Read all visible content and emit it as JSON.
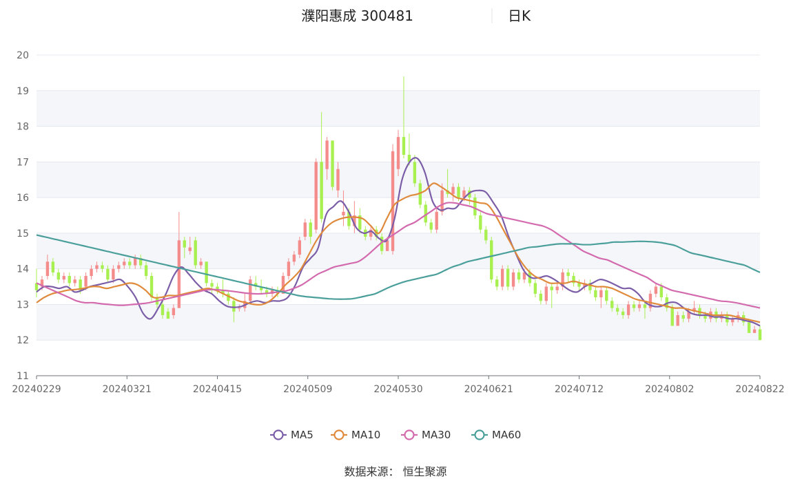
{
  "title": {
    "name": "濮阳惠成 300481",
    "period": "日K"
  },
  "source": "数据来源： 恒生聚源",
  "chart_data": {
    "type": "candlestick",
    "ylim": [
      11,
      20
    ],
    "yticks": [
      11,
      12,
      13,
      14,
      15,
      16,
      17,
      18,
      19,
      20
    ],
    "xtick_labels": [
      "20240229",
      "20240321",
      "20240415",
      "20240509",
      "20240530",
      "20240621",
      "20240712",
      "20240802",
      "20240822"
    ],
    "grid": true,
    "legend_position": "bottom-center",
    "colors": {
      "up": "#f58c8c",
      "down": "#a8ef50",
      "MA5": "#7b5ea7",
      "MA10": "#e08a3c",
      "MA30": "#d36aae",
      "MA60": "#4a9f9a"
    },
    "candles": [
      [
        13.6,
        13.4,
        14.0,
        13.2
      ],
      [
        13.5,
        13.7,
        13.8,
        13.4
      ],
      [
        13.8,
        14.2,
        14.4,
        13.7
      ],
      [
        14.2,
        13.9,
        14.3,
        13.8
      ],
      [
        13.9,
        13.7,
        14.0,
        13.6
      ],
      [
        13.7,
        13.8,
        13.9,
        13.6
      ],
      [
        13.8,
        13.6,
        13.9,
        13.5
      ],
      [
        13.6,
        13.7,
        13.8,
        13.5
      ],
      [
        13.7,
        13.4,
        13.8,
        13.3
      ],
      [
        13.5,
        13.8,
        13.9,
        13.4
      ],
      [
        13.8,
        14.0,
        14.1,
        13.7
      ],
      [
        14.0,
        14.1,
        14.2,
        13.9
      ],
      [
        14.1,
        14.0,
        14.2,
        13.9
      ],
      [
        14.0,
        13.7,
        14.1,
        13.6
      ],
      [
        13.7,
        14.0,
        14.1,
        13.6
      ],
      [
        14.0,
        14.1,
        14.2,
        13.9
      ],
      [
        14.1,
        14.2,
        14.3,
        14.0
      ],
      [
        14.2,
        14.1,
        14.3,
        14.0
      ],
      [
        14.1,
        14.3,
        14.4,
        14.0
      ],
      [
        14.3,
        14.1,
        14.4,
        14.0
      ],
      [
        14.1,
        13.8,
        14.2,
        13.7
      ],
      [
        13.8,
        13.2,
        13.9,
        13.1
      ],
      [
        13.2,
        13.0,
        13.3,
        12.9
      ],
      [
        13.0,
        12.7,
        13.1,
        12.6
      ],
      [
        12.8,
        12.6,
        12.9,
        12.6
      ],
      [
        12.7,
        12.9,
        13.0,
        12.6
      ],
      [
        12.9,
        14.8,
        15.6,
        12.9
      ],
      [
        14.8,
        14.6,
        14.9,
        14.3
      ],
      [
        14.5,
        14.6,
        14.9,
        14.4
      ],
      [
        14.8,
        14.1,
        14.9,
        14.0
      ],
      [
        14.1,
        14.2,
        14.3,
        14.0
      ],
      [
        14.2,
        13.6,
        14.2,
        13.5
      ],
      [
        13.6,
        13.5,
        13.7,
        13.3
      ],
      [
        13.5,
        13.4,
        13.6,
        13.3
      ],
      [
        13.4,
        13.3,
        13.7,
        13.2
      ],
      [
        13.3,
        13.1,
        13.4,
        13.0
      ],
      [
        13.1,
        12.8,
        13.2,
        12.5
      ],
      [
        12.9,
        12.9,
        13.0,
        12.8
      ],
      [
        12.9,
        13.1,
        13.3,
        12.8
      ],
      [
        13.1,
        13.7,
        13.8,
        13.0
      ],
      [
        13.6,
        13.5,
        13.8,
        13.4
      ],
      [
        13.5,
        13.4,
        13.7,
        13.3
      ],
      [
        13.4,
        13.3,
        13.5,
        13.2
      ],
      [
        13.3,
        13.4,
        13.5,
        13.2
      ],
      [
        13.4,
        13.3,
        13.5,
        13.2
      ],
      [
        13.3,
        13.8,
        13.9,
        13.3
      ],
      [
        13.8,
        14.2,
        14.3,
        13.7
      ],
      [
        14.2,
        14.4,
        14.5,
        14.1
      ],
      [
        14.4,
        14.8,
        14.9,
        14.3
      ],
      [
        14.9,
        15.3,
        15.4,
        14.8
      ],
      [
        15.3,
        14.9,
        15.4,
        14.7
      ],
      [
        15.1,
        17.0,
        17.1,
        15.0
      ],
      [
        17.0,
        15.4,
        18.4,
        15.3
      ],
      [
        16.8,
        17.6,
        17.7,
        16.5
      ],
      [
        17.6,
        16.3,
        17.6,
        16.2
      ],
      [
        16.2,
        16.8,
        17.0,
        16.0
      ],
      [
        15.5,
        15.6,
        16.2,
        15.2
      ],
      [
        15.6,
        15.2,
        15.7,
        15.1
      ],
      [
        15.2,
        15.5,
        15.9,
        15.0
      ],
      [
        15.5,
        15.1,
        15.7,
        15.0
      ],
      [
        15.1,
        14.9,
        15.2,
        14.8
      ],
      [
        14.9,
        15.1,
        15.2,
        14.8
      ],
      [
        15.1,
        14.9,
        15.2,
        14.8
      ],
      [
        14.9,
        14.5,
        15.0,
        14.4
      ],
      [
        14.5,
        14.8,
        14.9,
        14.5
      ],
      [
        14.5,
        17.3,
        17.5,
        14.4
      ],
      [
        16.8,
        17.7,
        17.9,
        16.6
      ],
      [
        17.7,
        17.2,
        19.4,
        17.1
      ],
      [
        17.2,
        17.0,
        17.8,
        16.9
      ],
      [
        17.0,
        16.4,
        17.2,
        16.3
      ],
      [
        16.4,
        15.8,
        16.5,
        15.7
      ],
      [
        15.8,
        15.3,
        15.9,
        15.2
      ],
      [
        15.3,
        15.1,
        15.4,
        15.0
      ],
      [
        15.1,
        15.6,
        15.7,
        15.0
      ],
      [
        15.6,
        16.2,
        16.4,
        15.5
      ],
      [
        16.2,
        16.1,
        16.8,
        16.0
      ],
      [
        16.1,
        16.3,
        16.4,
        15.9
      ],
      [
        16.3,
        16.0,
        16.4,
        15.9
      ],
      [
        16.0,
        16.2,
        16.3,
        15.9
      ],
      [
        16.2,
        16.0,
        16.3,
        15.8
      ],
      [
        16.0,
        15.5,
        16.1,
        15.4
      ],
      [
        15.5,
        15.1,
        15.6,
        15.0
      ],
      [
        15.1,
        14.8,
        15.2,
        14.7
      ],
      [
        14.8,
        13.7,
        14.9,
        13.6
      ],
      [
        13.7,
        13.5,
        13.8,
        13.4
      ],
      [
        13.5,
        14.0,
        14.1,
        13.4
      ],
      [
        14.0,
        13.5,
        14.1,
        13.4
      ],
      [
        13.5,
        13.9,
        14.0,
        13.4
      ],
      [
        13.9,
        13.7,
        14.0,
        13.6
      ],
      [
        13.7,
        13.9,
        14.0,
        13.6
      ],
      [
        13.9,
        13.6,
        14.0,
        13.5
      ],
      [
        13.6,
        13.3,
        13.7,
        13.2
      ],
      [
        13.3,
        13.1,
        13.4,
        13.0
      ],
      [
        13.1,
        13.5,
        13.6,
        13.0
      ],
      [
        13.5,
        13.4,
        13.6,
        12.9
      ],
      [
        13.4,
        13.5,
        13.6,
        13.3
      ],
      [
        13.5,
        13.9,
        14.0,
        13.4
      ],
      [
        13.9,
        13.8,
        14.0,
        13.6
      ],
      [
        13.8,
        13.6,
        13.9,
        13.5
      ],
      [
        13.6,
        13.5,
        13.7,
        13.4
      ],
      [
        13.5,
        13.6,
        13.7,
        13.4
      ],
      [
        13.6,
        13.4,
        13.7,
        13.3
      ],
      [
        13.4,
        13.2,
        13.5,
        13.1
      ],
      [
        13.2,
        13.4,
        13.5,
        12.9
      ],
      [
        13.4,
        13.1,
        13.5,
        13.0
      ],
      [
        13.1,
        12.9,
        13.2,
        12.8
      ],
      [
        12.9,
        12.8,
        13.0,
        12.7
      ],
      [
        12.8,
        12.7,
        12.9,
        12.6
      ],
      [
        12.7,
        13.0,
        13.1,
        12.6
      ],
      [
        13.0,
        12.9,
        13.1,
        12.8
      ],
      [
        12.9,
        13.0,
        13.1,
        12.8
      ],
      [
        13.0,
        12.9,
        13.1,
        12.6
      ],
      [
        12.9,
        13.3,
        13.4,
        12.8
      ],
      [
        13.3,
        13.5,
        13.6,
        13.2
      ],
      [
        13.5,
        13.2,
        13.6,
        13.1
      ],
      [
        13.2,
        12.9,
        13.3,
        12.8
      ],
      [
        12.9,
        12.4,
        13.0,
        12.4
      ],
      [
        12.4,
        12.7,
        12.8,
        12.4
      ],
      [
        12.7,
        12.6,
        12.8,
        12.5
      ],
      [
        12.6,
        12.8,
        12.9,
        12.5
      ],
      [
        12.8,
        12.9,
        13.1,
        12.7
      ],
      [
        12.9,
        12.7,
        13.0,
        12.6
      ],
      [
        12.7,
        12.6,
        12.8,
        12.5
      ],
      [
        12.6,
        12.8,
        12.9,
        12.5
      ],
      [
        12.8,
        12.6,
        12.9,
        12.5
      ],
      [
        12.6,
        12.7,
        12.8,
        12.5
      ],
      [
        12.7,
        12.5,
        12.8,
        12.4
      ],
      [
        12.5,
        12.6,
        12.7,
        12.4
      ],
      [
        12.6,
        12.7,
        12.8,
        12.5
      ],
      [
        12.7,
        12.5,
        12.8,
        12.4
      ],
      [
        12.5,
        12.2,
        12.6,
        12.2
      ],
      [
        12.2,
        12.3,
        12.4,
        12.2
      ],
      [
        12.3,
        12.0,
        12.4,
        12.0
      ]
    ],
    "series": [
      {
        "name": "MA5",
        "values": [
          13.35,
          13.5,
          13.5,
          13.45,
          13.5,
          13.35,
          13.4,
          13.5,
          13.55,
          13.6,
          13.65,
          13.7,
          13.5,
          13.2,
          12.75,
          12.6,
          12.9,
          13.3,
          13.8,
          14.05,
          13.85,
          13.6,
          13.4,
          13.3,
          13.1,
          12.95,
          12.92,
          12.95,
          13.05,
          13.1,
          13.05,
          13.1,
          13.1,
          13.2,
          13.55,
          14.05,
          14.3,
          14.6,
          15.5,
          15.75,
          15.9,
          15.6,
          15.15,
          15.0,
          15.05,
          14.85,
          14.8,
          15.4,
          16.5,
          17.0,
          17.1,
          16.7,
          15.9,
          15.65,
          15.7,
          15.7,
          15.95,
          16.15,
          16.2,
          16.15,
          15.85,
          15.5,
          14.9,
          14.4,
          13.95,
          13.75,
          13.75,
          13.8,
          13.7,
          13.55,
          13.4,
          13.35,
          13.5,
          13.6,
          13.7,
          13.65,
          13.55,
          13.45,
          13.45,
          13.3,
          13.05,
          12.95,
          12.95,
          13.05,
          13.05,
          12.9,
          12.75,
          12.7,
          12.7,
          12.65,
          12.65,
          12.6,
          12.6,
          12.55,
          12.5,
          12.4
        ]
      },
      {
        "name": "MA10",
        "values": [
          13.05,
          13.2,
          13.3,
          13.35,
          13.4,
          13.42,
          13.45,
          13.5,
          13.5,
          13.45,
          13.5,
          13.55,
          13.6,
          13.55,
          13.4,
          13.2,
          13.2,
          13.25,
          13.25,
          13.3,
          13.35,
          13.4,
          13.45,
          13.4,
          13.3,
          13.2,
          13.1,
          13.05,
          13.0,
          13.0,
          13.1,
          13.3,
          13.55,
          13.75,
          14.0,
          14.4,
          14.8,
          15.1,
          15.3,
          15.4,
          15.45,
          15.45,
          15.4,
          15.2,
          15.0,
          15.4,
          15.8,
          15.95,
          16.05,
          16.1,
          16.2,
          16.4,
          16.3,
          16.15,
          16.0,
          15.95,
          15.9,
          15.85,
          15.8,
          15.5,
          15.1,
          14.7,
          14.3,
          14.0,
          13.8,
          13.7,
          13.6,
          13.6,
          13.6,
          13.65,
          13.6,
          13.55,
          13.5,
          13.5,
          13.45,
          13.35,
          13.25,
          13.15,
          13.1,
          13.05,
          13.0,
          12.95,
          12.9,
          12.9,
          12.85,
          12.8,
          12.75,
          12.7,
          12.7,
          12.7,
          12.65,
          12.6,
          12.55,
          12.5
        ]
      },
      {
        "name": "MA30",
        "values": [
          13.6,
          13.5,
          13.4,
          13.3,
          13.2,
          13.1,
          13.05,
          13.05,
          13.02,
          13.0,
          12.98,
          12.98,
          13.0,
          13.02,
          13.05,
          13.1,
          13.15,
          13.2,
          13.25,
          13.3,
          13.35,
          13.4,
          13.42,
          13.4,
          13.38,
          13.35,
          13.32,
          13.3,
          13.3,
          13.32,
          13.35,
          13.38,
          13.45,
          13.55,
          13.7,
          13.85,
          13.95,
          14.05,
          14.1,
          14.15,
          14.2,
          14.35,
          14.55,
          14.75,
          14.9,
          15.05,
          15.2,
          15.3,
          15.45,
          15.6,
          15.75,
          15.85,
          15.85,
          15.8,
          15.75,
          15.65,
          15.55,
          15.5,
          15.45,
          15.4,
          15.35,
          15.3,
          15.25,
          15.2,
          15.1,
          14.95,
          14.8,
          14.65,
          14.5,
          14.4,
          14.3,
          14.25,
          14.15,
          14.05,
          13.95,
          13.85,
          13.75,
          13.6,
          13.5,
          13.4,
          13.35,
          13.3,
          13.25,
          13.2,
          13.15,
          13.1,
          13.08,
          13.05,
          13.0,
          12.95,
          12.9
        ]
      },
      {
        "name": "MA60",
        "values": [
          14.95,
          14.9,
          14.85,
          14.8,
          14.75,
          14.7,
          14.65,
          14.6,
          14.55,
          14.5,
          14.45,
          14.4,
          14.35,
          14.3,
          14.25,
          14.2,
          14.15,
          14.1,
          14.05,
          14.0,
          13.95,
          13.9,
          13.85,
          13.8,
          13.75,
          13.7,
          13.65,
          13.6,
          13.55,
          13.5,
          13.45,
          13.4,
          13.35,
          13.3,
          13.25,
          13.22,
          13.2,
          13.18,
          13.16,
          13.15,
          13.15,
          13.16,
          13.2,
          13.25,
          13.3,
          13.4,
          13.5,
          13.58,
          13.65,
          13.7,
          13.75,
          13.8,
          13.85,
          13.95,
          14.05,
          14.12,
          14.2,
          14.25,
          14.3,
          14.35,
          14.4,
          14.45,
          14.5,
          14.55,
          14.6,
          14.62,
          14.65,
          14.68,
          14.7,
          14.7,
          14.7,
          14.68,
          14.68,
          14.7,
          14.72,
          14.75,
          14.75,
          14.76,
          14.77,
          14.77,
          14.76,
          14.74,
          14.7,
          14.65,
          14.55,
          14.45,
          14.4,
          14.35,
          14.3,
          14.25,
          14.2,
          14.15,
          14.1,
          14.0,
          13.9
        ]
      }
    ]
  }
}
